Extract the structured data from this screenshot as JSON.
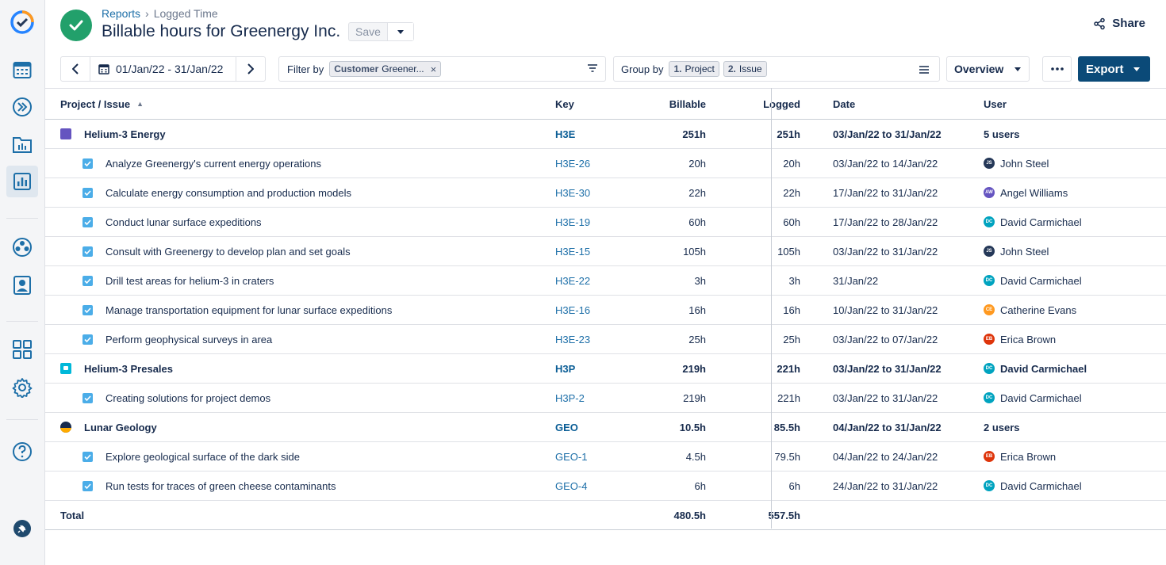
{
  "breadcrumb": {
    "parent": "Reports",
    "current": "Logged Time"
  },
  "title": "Billable hours for Greenergy Inc.",
  "save_label": "Save",
  "share_label": "Share",
  "date_range": "01/Jan/22 - 31/Jan/22",
  "filter": {
    "label": "Filter by",
    "chip_field": "Customer",
    "chip_value": "Greener..."
  },
  "group": {
    "label": "Group by",
    "chips": [
      {
        "n": "1.",
        "v": "Project"
      },
      {
        "n": "2.",
        "v": "Issue"
      }
    ]
  },
  "view_select": "Overview",
  "export_label": "Export",
  "colors": {
    "accent": "#0b4a78",
    "success": "#22a06b",
    "link": "#1d6fa8",
    "checkbox": "#4bade8"
  },
  "columns": {
    "name": "Project / Issue",
    "key": "Key",
    "billable": "Billable",
    "logged": "Logged",
    "date": "Date",
    "user": "User"
  },
  "groups": [
    {
      "name": "Helium-3 Energy",
      "key": "H3E",
      "billable": "251h",
      "logged": "251h",
      "date": "03/Jan/22 to 31/Jan/22",
      "user": "5 users",
      "icon_color": "#6554c0",
      "issues": [
        {
          "name": "Analyze Greenergy's current energy operations",
          "key": "H3E-26",
          "billable": "20h",
          "logged": "20h",
          "date": "03/Jan/22 to 14/Jan/22",
          "user": "John Steel",
          "initials": "JS",
          "avatar_color": "#253858"
        },
        {
          "name": "Calculate energy consumption and production models",
          "key": "H3E-30",
          "billable": "22h",
          "logged": "22h",
          "date": "17/Jan/22 to 31/Jan/22",
          "user": "Angel Williams",
          "initials": "AW",
          "avatar_color": "#6554c0"
        },
        {
          "name": "Conduct lunar surface expeditions",
          "key": "H3E-19",
          "billable": "60h",
          "logged": "60h",
          "date": "17/Jan/22 to 28/Jan/22",
          "user": "David Carmichael",
          "initials": "DC",
          "avatar_color": "#00a3bf"
        },
        {
          "name": "Consult with Greenergy to develop plan and set goals",
          "key": "H3E-15",
          "billable": "105h",
          "logged": "105h",
          "date": "03/Jan/22 to 31/Jan/22",
          "user": "John Steel",
          "initials": "JS",
          "avatar_color": "#253858"
        },
        {
          "name": "Drill test areas for helium-3 in craters",
          "key": "H3E-22",
          "billable": "3h",
          "logged": "3h",
          "date": "31/Jan/22",
          "user": "David Carmichael",
          "initials": "DC",
          "avatar_color": "#00a3bf"
        },
        {
          "name": "Manage transportation equipment for lunar surface expeditions",
          "key": "H3E-16",
          "billable": "16h",
          "logged": "16h",
          "date": "10/Jan/22 to 31/Jan/22",
          "user": "Catherine Evans",
          "initials": "CE",
          "avatar_color": "#ff991f"
        },
        {
          "name": "Perform geophysical surveys in area",
          "key": "H3E-23",
          "billable": "25h",
          "logged": "25h",
          "date": "03/Jan/22 to 07/Jan/22",
          "user": "Erica Brown",
          "initials": "EB",
          "avatar_color": "#de350b"
        }
      ]
    },
    {
      "name": "Helium-3 Presales",
      "key": "H3P",
      "billable": "219h",
      "logged": "221h",
      "date": "03/Jan/22 to 31/Jan/22",
      "user": "David Carmichael",
      "user_initials": "DC",
      "user_avatar_color": "#00a3bf",
      "icon_color": "#00b8d9",
      "issues": [
        {
          "name": "Creating solutions for project demos",
          "key": "H3P-2",
          "billable": "219h",
          "logged": "221h",
          "date": "03/Jan/22 to 31/Jan/22",
          "user": "David Carmichael",
          "initials": "DC",
          "avatar_color": "#00a3bf"
        }
      ]
    },
    {
      "name": "Lunar Geology",
      "key": "GEO",
      "billable": "10.5h",
      "logged": "85.5h",
      "date": "04/Jan/22 to 31/Jan/22",
      "user": "2 users",
      "icon_color": "#172b4d",
      "issues": [
        {
          "name": "Explore geological surface of the dark side",
          "key": "GEO-1",
          "billable": "4.5h",
          "logged": "79.5h",
          "date": "04/Jan/22 to 24/Jan/22",
          "user": "Erica Brown",
          "initials": "EB",
          "avatar_color": "#de350b"
        },
        {
          "name": "Run tests for traces of green cheese contaminants",
          "key": "GEO-4",
          "billable": "6h",
          "logged": "6h",
          "date": "24/Jan/22 to 31/Jan/22",
          "user": "David Carmichael",
          "initials": "DC",
          "avatar_color": "#00a3bf"
        }
      ]
    }
  ],
  "total": {
    "label": "Total",
    "billable": "480.5h",
    "logged": "557.5h"
  }
}
